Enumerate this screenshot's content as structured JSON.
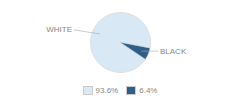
{
  "chart_data": {
    "type": "pie",
    "categories": [
      "WHITE",
      "BLACK"
    ],
    "values": [
      93.6,
      6.4
    ],
    "value_labels": [
      "93.6%",
      "6.4%"
    ],
    "colors": [
      "#d9e8f5",
      "#2e5f8a"
    ],
    "legend": "bottom"
  }
}
